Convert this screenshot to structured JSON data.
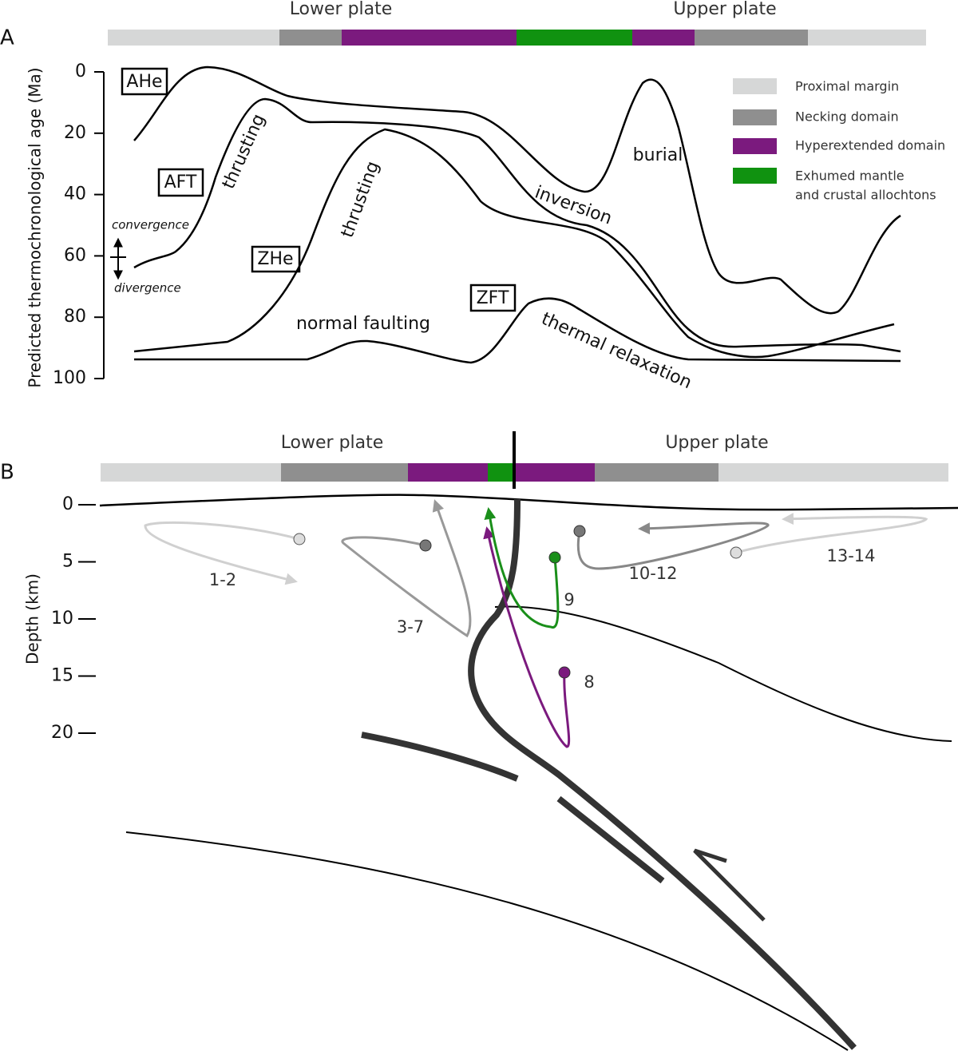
{
  "panel_a": {
    "label": "A",
    "lower_plate": "Lower plate",
    "upper_plate": "Upper plate",
    "y_axis_label": "Predicted  thermochronological age (Ma)",
    "yticks": [
      0,
      20,
      40,
      60,
      80,
      100
    ],
    "curve_labels": [
      "AHe",
      "AFT",
      "ZHe",
      "ZFT"
    ],
    "annotations": [
      "thrusting",
      "thrusting",
      "normal faulting",
      "thermal relaxation",
      "inversion",
      "burial"
    ],
    "motion": [
      "convergence",
      "divergence"
    ],
    "legend": [
      {
        "lines": [
          "Proximal margin"
        ]
      },
      {
        "lines": [
          "Necking domain"
        ]
      },
      {
        "lines": [
          "Hyperextended domain"
        ]
      },
      {
        "lines": [
          "Exhumed mantle",
          "and crustal allochtons"
        ]
      }
    ]
  },
  "panel_b": {
    "label": "B",
    "lower_plate": "Lower plate",
    "upper_plate": "Upper plate",
    "y_axis_label": "Depth (km)",
    "yticks": [
      0,
      5,
      10,
      15,
      20
    ],
    "path_labels": [
      "1-2",
      "3-7",
      "9",
      "10-12",
      "13-14",
      "8"
    ]
  }
}
